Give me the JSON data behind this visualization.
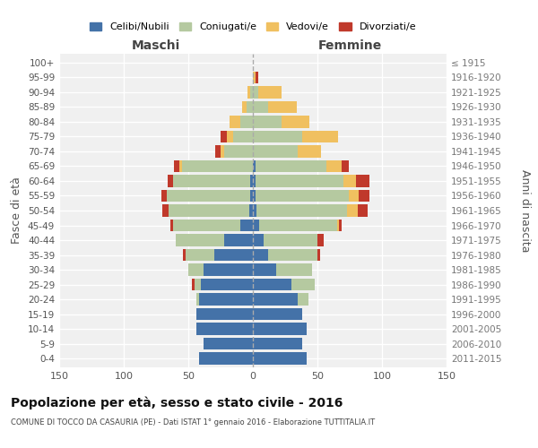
{
  "age_groups": [
    "0-4",
    "5-9",
    "10-14",
    "15-19",
    "20-24",
    "25-29",
    "30-34",
    "35-39",
    "40-44",
    "45-49",
    "50-54",
    "55-59",
    "60-64",
    "65-69",
    "70-74",
    "75-79",
    "80-84",
    "85-89",
    "90-94",
    "95-99",
    "100+"
  ],
  "birth_years": [
    "2011-2015",
    "2006-2010",
    "2001-2005",
    "1996-2000",
    "1991-1995",
    "1986-1990",
    "1981-1985",
    "1976-1980",
    "1971-1975",
    "1966-1970",
    "1961-1965",
    "1956-1960",
    "1951-1955",
    "1946-1950",
    "1941-1945",
    "1936-1940",
    "1931-1935",
    "1926-1930",
    "1921-1925",
    "1916-1920",
    "≤ 1915"
  ],
  "maschi": {
    "celibe": [
      42,
      38,
      44,
      44,
      42,
      40,
      38,
      30,
      22,
      10,
      3,
      2,
      2,
      0,
      0,
      0,
      0,
      0,
      0,
      0,
      0
    ],
    "coniugato": [
      0,
      0,
      0,
      0,
      2,
      5,
      12,
      22,
      38,
      52,
      62,
      65,
      60,
      55,
      22,
      15,
      10,
      5,
      2,
      0,
      0
    ],
    "vedovo": [
      0,
      0,
      0,
      0,
      0,
      0,
      0,
      0,
      0,
      0,
      0,
      0,
      0,
      2,
      3,
      5,
      8,
      3,
      2,
      0,
      0
    ],
    "divorziato": [
      0,
      0,
      0,
      0,
      0,
      2,
      0,
      2,
      0,
      2,
      5,
      4,
      4,
      4,
      4,
      5,
      0,
      0,
      0,
      0,
      0
    ]
  },
  "femmine": {
    "nubile": [
      42,
      38,
      42,
      38,
      35,
      30,
      18,
      12,
      8,
      5,
      3,
      2,
      2,
      2,
      0,
      0,
      0,
      0,
      0,
      0,
      0
    ],
    "coniugata": [
      0,
      0,
      0,
      0,
      8,
      18,
      28,
      38,
      42,
      60,
      70,
      72,
      68,
      55,
      35,
      38,
      22,
      12,
      4,
      0,
      0
    ],
    "vedova": [
      0,
      0,
      0,
      0,
      0,
      0,
      0,
      0,
      0,
      2,
      8,
      8,
      10,
      12,
      18,
      28,
      22,
      22,
      18,
      2,
      0
    ],
    "divorziata": [
      0,
      0,
      0,
      0,
      0,
      0,
      0,
      2,
      5,
      2,
      8,
      8,
      10,
      5,
      0,
      0,
      0,
      0,
      0,
      2,
      0
    ]
  },
  "colors": {
    "celibe_nubile": "#4472a8",
    "coniugato_a": "#b5c9a0",
    "vedovo_a": "#f0c060",
    "divorziato_a": "#c0392b"
  },
  "xlim": 150,
  "title": "Popolazione per età, sesso e stato civile - 2016",
  "subtitle": "COMUNE DI TOCCO DA CASAURIA (PE) - Dati ISTAT 1° gennaio 2016 - Elaborazione TUTTITALIA.IT",
  "ylabel_left": "Fasce di età",
  "ylabel_right": "Anni di nascita",
  "xlabel_left": "Maschi",
  "xlabel_right": "Femmine",
  "legend_labels": [
    "Celibi/Nubili",
    "Coniugati/e",
    "Vedovi/e",
    "Divorziati/e"
  ],
  "bg_color": "#f0f0f0",
  "grid_color": "#ffffff",
  "xticks": [
    150,
    100,
    50,
    0,
    50,
    100,
    150
  ]
}
